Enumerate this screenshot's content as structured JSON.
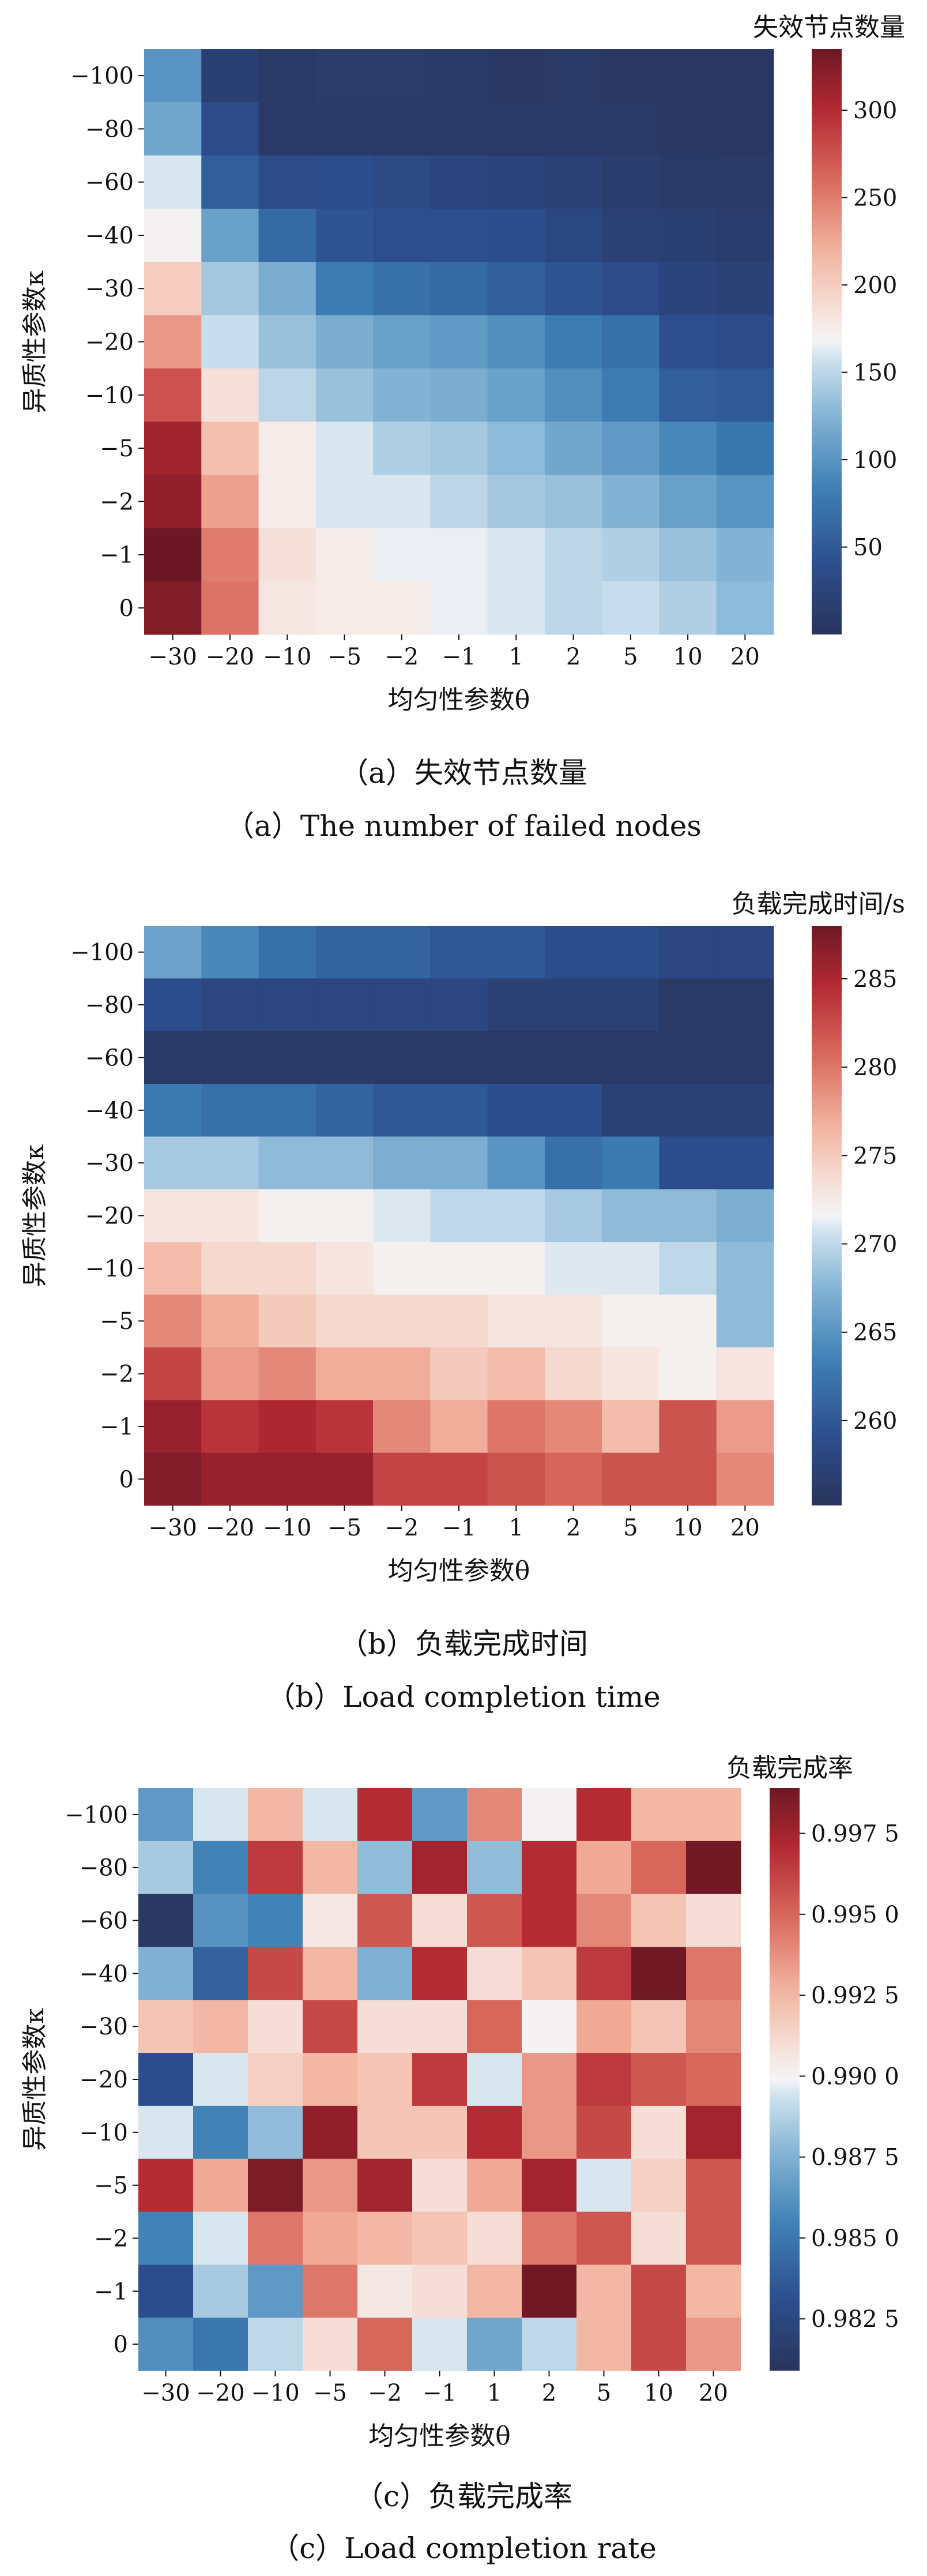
{
  "chart_data": [
    {
      "type": "heatmap",
      "colorbar_label": "失效节点数量",
      "xlabel": "均匀性参数θ",
      "ylabel": "异质性参数κ",
      "x_categories": [
        "−30",
        "−20",
        "−10",
        "−5",
        "−2",
        "−1",
        "1",
        "2",
        "5",
        "10",
        "20"
      ],
      "y_categories": [
        "−100",
        "−80",
        "−60",
        "−40",
        "−30",
        "−20",
        "−10",
        "−5",
        "−2",
        "−1",
        "0"
      ],
      "colorbar_ticks": [
        {
          "value": 50,
          "label": "50"
        },
        {
          "value": 100,
          "label": "100"
        },
        {
          "value": 150,
          "label": "150"
        },
        {
          "value": 200,
          "label": "200"
        },
        {
          "value": 250,
          "label": "250"
        },
        {
          "value": 300,
          "label": "300"
        }
      ],
      "vmin": 0,
      "vmax": 335,
      "values": [
        [
          100,
          18,
          8,
          12,
          12,
          10,
          6,
          8,
          6,
          5,
          5
        ],
        [
          115,
          35,
          8,
          10,
          10,
          10,
          8,
          8,
          8,
          6,
          5
        ],
        [
          160,
          55,
          35,
          38,
          32,
          28,
          25,
          20,
          14,
          10,
          8
        ],
        [
          170,
          110,
          65,
          45,
          40,
          40,
          38,
          30,
          20,
          18,
          14
        ],
        [
          200,
          140,
          120,
          80,
          70,
          65,
          55,
          45,
          35,
          25,
          22
        ],
        [
          235,
          155,
          135,
          120,
          110,
          105,
          95,
          80,
          70,
          40,
          35
        ],
        [
          275,
          185,
          150,
          135,
          125,
          120,
          110,
          95,
          80,
          55,
          50
        ],
        [
          310,
          210,
          175,
          160,
          145,
          140,
          130,
          115,
          105,
          90,
          75
        ],
        [
          318,
          230,
          175,
          160,
          160,
          150,
          140,
          135,
          125,
          110,
          100
        ],
        [
          335,
          250,
          185,
          175,
          165,
          165,
          160,
          150,
          145,
          135,
          125
        ],
        [
          325,
          255,
          180,
          175,
          175,
          165,
          160,
          150,
          155,
          145,
          130
        ]
      ],
      "caption_cn": "（a）失效节点数量",
      "caption_en": "（a）The number of failed nodes"
    },
    {
      "type": "heatmap",
      "colorbar_label": "负载完成时间/s",
      "xlabel": "均匀性参数θ",
      "ylabel": "异质性参数κ",
      "x_categories": [
        "−30",
        "−20",
        "−10",
        "−5",
        "−2",
        "−1",
        "1",
        "2",
        "5",
        "10",
        "20"
      ],
      "y_categories": [
        "−100",
        "−80",
        "−60",
        "−40",
        "−30",
        "−20",
        "−10",
        "−5",
        "−2",
        "−1",
        "0"
      ],
      "colorbar_ticks": [
        {
          "value": 260,
          "label": "260"
        },
        {
          "value": 265,
          "label": "265"
        },
        {
          "value": 270,
          "label": "270"
        },
        {
          "value": 275,
          "label": "275"
        },
        {
          "value": 280,
          "label": "280"
        },
        {
          "value": 285,
          "label": "285"
        }
      ],
      "vmin": 255.2,
      "vmax": 288,
      "values": [
        [
          266,
          264,
          262,
          261,
          261,
          260,
          260,
          259,
          259,
          258,
          258
        ],
        [
          259,
          258,
          258,
          258,
          258,
          258,
          257,
          257,
          257,
          256,
          256
        ],
        [
          256,
          256,
          256,
          256,
          256,
          256,
          256,
          256,
          256,
          256,
          256
        ],
        [
          263,
          262,
          262,
          261,
          260,
          260,
          259,
          259,
          257,
          257,
          257
        ],
        [
          269,
          269,
          268,
          268,
          267,
          267,
          265,
          262,
          263,
          259,
          259
        ],
        [
          273,
          273,
          272,
          272,
          271,
          270,
          270,
          269,
          268,
          268,
          267
        ],
        [
          276,
          274,
          274,
          273,
          272,
          272,
          272,
          271,
          271,
          270,
          268
        ],
        [
          279,
          277,
          275,
          274,
          274,
          274,
          273,
          273,
          272,
          272,
          268
        ],
        [
          283,
          278,
          279,
          277,
          277,
          275,
          276,
          274,
          273,
          272,
          273
        ],
        [
          286,
          284,
          285,
          284,
          279,
          277,
          280,
          279,
          276,
          282,
          278
        ],
        [
          287,
          286,
          286,
          286,
          283,
          283,
          282,
          281,
          282,
          282,
          279
        ]
      ],
      "caption_cn": "（b）负载完成时间",
      "caption_en": "（b）Load completion time"
    },
    {
      "type": "heatmap",
      "colorbar_label": "负载完成率",
      "xlabel": "均匀性参数θ",
      "ylabel": "异质性参数κ",
      "x_categories": [
        "−30",
        "−20",
        "−10",
        "−5",
        "−2",
        "−1",
        "1",
        "2",
        "5",
        "10",
        "20"
      ],
      "y_categories": [
        "−100",
        "−80",
        "−60",
        "−40",
        "−30",
        "−20",
        "−10",
        "−5",
        "−2",
        "−1",
        "0"
      ],
      "colorbar_ticks": [
        {
          "value": 0.9825,
          "label": "0.982 5"
        },
        {
          "value": 0.985,
          "label": "0.985 0"
        },
        {
          "value": 0.9875,
          "label": "0.987 5"
        },
        {
          "value": 0.99,
          "label": "0.990 0"
        },
        {
          "value": 0.9925,
          "label": "0.992 5"
        },
        {
          "value": 0.995,
          "label": "0.995 0"
        },
        {
          "value": 0.9975,
          "label": "0.997 5"
        }
      ],
      "vmin": 0.9809,
      "vmax": 0.9989,
      "values": [
        [
          0.9865,
          0.9895,
          0.9925,
          0.9895,
          0.997,
          0.9865,
          0.994,
          0.99,
          0.997,
          0.9925,
          0.9925
        ],
        [
          0.9885,
          0.9855,
          0.9965,
          0.9925,
          0.988,
          0.9975,
          0.988,
          0.997,
          0.993,
          0.995,
          0.9988
        ],
        [
          0.9812,
          0.9862,
          0.9855,
          0.9905,
          0.9955,
          0.991,
          0.9955,
          0.997,
          0.994,
          0.992,
          0.991
        ],
        [
          0.9875,
          0.984,
          0.996,
          0.9925,
          0.9875,
          0.997,
          0.991,
          0.992,
          0.9965,
          0.9988,
          0.9945
        ],
        [
          0.992,
          0.9925,
          0.991,
          0.996,
          0.991,
          0.991,
          0.995,
          0.99,
          0.993,
          0.992,
          0.994
        ],
        [
          0.983,
          0.9895,
          0.9915,
          0.9925,
          0.992,
          0.9965,
          0.9895,
          0.9935,
          0.9965,
          0.9955,
          0.995
        ],
        [
          0.9895,
          0.9855,
          0.988,
          0.998,
          0.992,
          0.992,
          0.997,
          0.9935,
          0.996,
          0.991,
          0.9975
        ],
        [
          0.997,
          0.993,
          0.9985,
          0.9935,
          0.9975,
          0.991,
          0.993,
          0.9975,
          0.9895,
          0.9915,
          0.9955
        ],
        [
          0.9855,
          0.9895,
          0.9945,
          0.993,
          0.9925,
          0.992,
          0.991,
          0.9945,
          0.9955,
          0.991,
          0.9955
        ],
        [
          0.983,
          0.9885,
          0.9865,
          0.9945,
          0.9905,
          0.991,
          0.9925,
          0.9988,
          0.9925,
          0.996,
          0.9925
        ],
        [
          0.986,
          0.985,
          0.989,
          0.991,
          0.995,
          0.9895,
          0.987,
          0.989,
          0.9925,
          0.996,
          0.9935
        ]
      ],
      "caption_cn": "（c）负载完成率",
      "caption_en": "（c）Load completion rate"
    }
  ]
}
